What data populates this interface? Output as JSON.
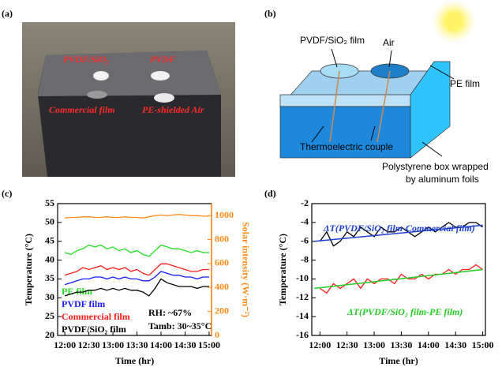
{
  "panel_labels": [
    "(a)",
    "(b)",
    "(c)",
    "(d)"
  ],
  "photo": {
    "labels": [
      "PVDF/SiO₂",
      "PVDF",
      "Commercial film",
      "PE-shielded Air"
    ]
  },
  "diagram": {
    "labels": [
      "PVDF/SiO₂ film",
      "Air",
      "PE film",
      "Thermoelectric couple",
      "Polystyrene box wrapped",
      "by aluminum foils"
    ]
  },
  "chart_data": [
    {
      "type": "line",
      "xlabel": "Time (hr)",
      "ylabel": "Temperature (°C)",
      "y2label": "Solar intensity (W·m⁻²)",
      "x": [
        12,
        12.125,
        12.25,
        12.375,
        12.5,
        12.625,
        12.75,
        12.875,
        13,
        13.125,
        13.25,
        13.375,
        13.5,
        13.625,
        13.75,
        13.875,
        14,
        14.125,
        14.25,
        14.375,
        14.5,
        14.625,
        14.75,
        14.875,
        15
      ],
      "xlim": [
        11.85,
        15.05
      ],
      "xticks": [
        {
          "value": 12,
          "label": "12:00"
        },
        {
          "value": 12.5,
          "label": "12:30"
        },
        {
          "value": 13,
          "label": "13:00"
        },
        {
          "value": 13.5,
          "label": "13:30"
        },
        {
          "value": 14,
          "label": "14:00"
        },
        {
          "value": 14.5,
          "label": "14:30"
        },
        {
          "value": 15,
          "label": "15:00"
        }
      ],
      "ylim": [
        20,
        55
      ],
      "yticks": [
        20,
        25,
        30,
        35,
        40,
        45,
        50,
        55
      ],
      "y2lim": [
        0,
        1100
      ],
      "y2ticks": [
        0,
        200,
        400,
        600,
        800,
        1000
      ],
      "series": [
        {
          "name": "PE film",
          "color": "#22dd22",
          "values": [
            42,
            41.5,
            42.5,
            43,
            44,
            43.5,
            44,
            43,
            43.5,
            42.5,
            43,
            42,
            42.5,
            41.5,
            41,
            42.5,
            44,
            43.5,
            43,
            43,
            42.5,
            42,
            42.5,
            42,
            42
          ]
        },
        {
          "name": "PVDF film",
          "color": "#1a1aff",
          "values": [
            33.5,
            34,
            34.5,
            35,
            35,
            35.5,
            35.5,
            35,
            35.5,
            35,
            35.5,
            35,
            35,
            34.5,
            34.5,
            35.5,
            37,
            36.5,
            36,
            36,
            35.5,
            35.5,
            35,
            35.5,
            35.5
          ]
        },
        {
          "name": "Commercial film",
          "color": "#ff1a1a",
          "values": [
            36,
            36.5,
            37,
            38,
            37.5,
            38,
            38.5,
            37.5,
            38,
            37.5,
            38,
            37,
            37.5,
            36.5,
            36,
            37.5,
            39,
            39,
            38.5,
            38,
            37.5,
            37,
            37,
            37.5,
            37.5
          ]
        },
        {
          "name": "PVDF/SiO₂ film",
          "color": "#000000",
          "values": [
            30.5,
            31,
            31.5,
            31.5,
            32,
            32,
            32.5,
            32,
            32.5,
            32,
            32.5,
            32,
            32,
            31.5,
            30.5,
            32.5,
            35,
            34,
            33.5,
            33,
            33,
            33,
            32.5,
            33,
            33
          ]
        },
        {
          "color": "#ff8c1a",
          "axis": "y2",
          "values": [
            980,
            985,
            985,
            990,
            990,
            985,
            985,
            990,
            985,
            985,
            990,
            985,
            985,
            980,
            990,
            1000,
            1005,
            1000,
            1005,
            1010,
            1005,
            1000,
            1000,
            995,
            995
          ]
        }
      ],
      "annotations": [
        "RH: ~67%",
        "Tamb: 30~35°C"
      ]
    },
    {
      "type": "line",
      "xlabel": "Time (hr)",
      "ylabel": "Temperature (°C)",
      "x": [
        12,
        12.125,
        12.25,
        12.375,
        12.5,
        12.625,
        12.75,
        12.875,
        13,
        13.125,
        13.25,
        13.375,
        13.5,
        13.625,
        13.75,
        13.875,
        14,
        14.125,
        14.25,
        14.375,
        14.5,
        14.625,
        14.75,
        14.875,
        15
      ],
      "xlim": [
        11.85,
        15.05
      ],
      "xticks": [
        {
          "value": 12,
          "label": "12:00"
        },
        {
          "value": 12.5,
          "label": "12:30"
        },
        {
          "value": 13,
          "label": "13:00"
        },
        {
          "value": 13.5,
          "label": "13:30"
        },
        {
          "value": 14,
          "label": "14:00"
        },
        {
          "value": 14.5,
          "label": "14:30"
        },
        {
          "value": 15,
          "label": "15:00"
        }
      ],
      "ylim": [
        -16,
        -2
      ],
      "yticks": [
        -16,
        -14,
        -12,
        -10,
        -8,
        -6,
        -4,
        -2
      ],
      "series": [
        {
          "color": "#000000",
          "values": [
            -6,
            -5,
            -6.5,
            -6,
            -5,
            -5.5,
            -4.5,
            -5,
            -5.5,
            -4.5,
            -5,
            -5,
            -4.5,
            -5,
            -5.5,
            -5,
            -4.5,
            -5,
            -4.5,
            -4,
            -4.5,
            -4.5,
            -4,
            -4,
            -4.5
          ]
        },
        {
          "color": "#ff1a1a",
          "values": [
            -11,
            -11.5,
            -10.5,
            -11,
            -10.5,
            -10,
            -11,
            -10,
            -10.5,
            -10,
            -10,
            -10.5,
            -9.5,
            -10,
            -10,
            -9.5,
            -10,
            -9.5,
            -9.5,
            -9,
            -9.5,
            -9,
            -9,
            -8.5,
            -9
          ]
        },
        {
          "name": "ΔT(PVDF/SiO₂ film-Commercial film)",
          "color": "#1f3fd0",
          "x": [
            11.9,
            15
          ],
          "values": [
            -6,
            -4.3
          ]
        },
        {
          "name": "ΔT(PVDF/SiO₂ film-PE film)",
          "color": "#22cc22",
          "x": [
            11.9,
            15
          ],
          "values": [
            -11,
            -9
          ]
        }
      ]
    }
  ]
}
